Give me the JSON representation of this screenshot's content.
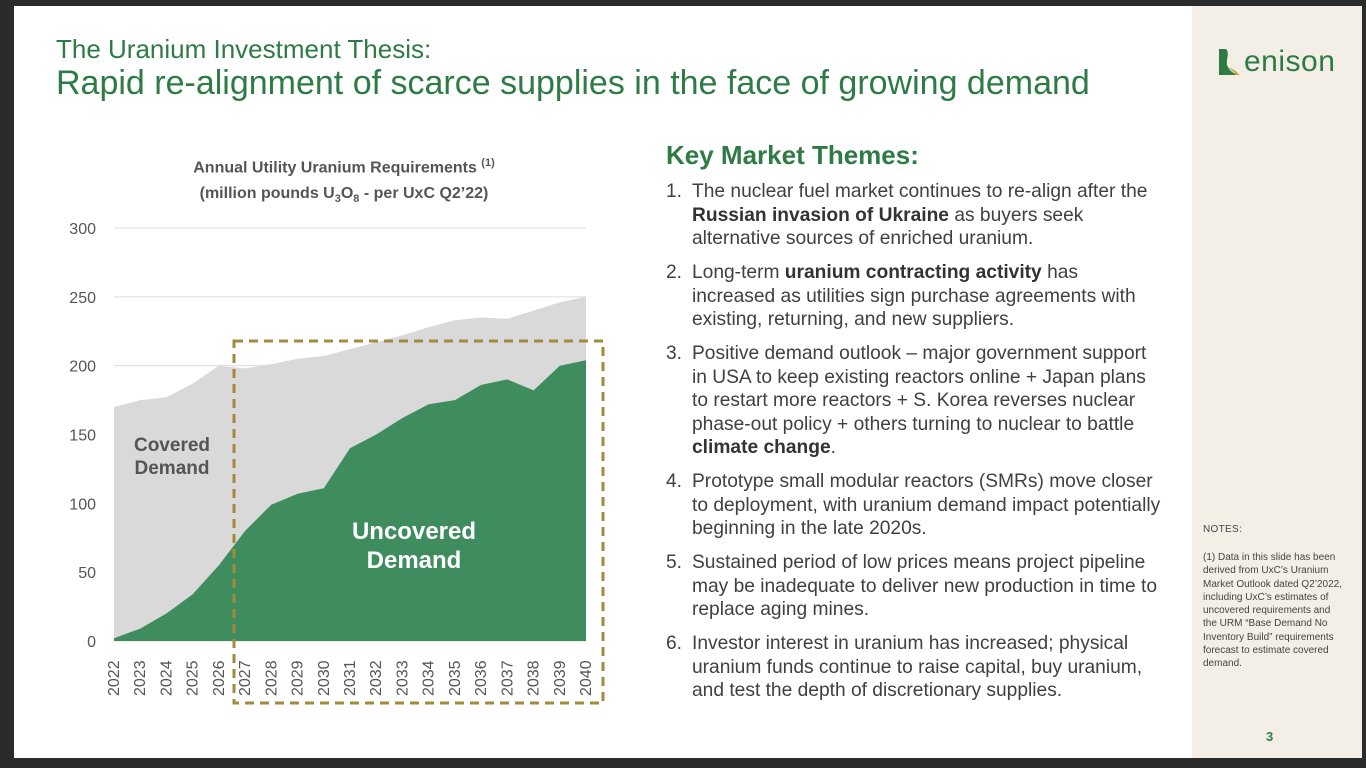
{
  "header": {
    "title_line1": "The Uranium Investment Thesis:",
    "title_line2": "Rapid re-alignment of scarce supplies in the face of growing demand"
  },
  "logo": {
    "text": "enison",
    "mark_letter": "D",
    "brand_color": "#2e7b45"
  },
  "chart_data": {
    "type": "area",
    "title_part1": "Annual Utility Uranium Requirements",
    "title_footnote": "(1)",
    "title_line2_pre": "(million pounds U",
    "sub1": "3",
    "title_line2_mid": "O",
    "sub2": "8",
    "title_line2_post": " - per UxC Q2’22)",
    "ylim": [
      0,
      300
    ],
    "yticks": [
      "300",
      "250",
      "200",
      "150",
      "100",
      "50",
      "0"
    ],
    "x": [
      "2022",
      "2023",
      "2024",
      "2025",
      "2026",
      "2027",
      "2028",
      "2029",
      "2030",
      "2031",
      "2032",
      "2033",
      "2034",
      "2035",
      "2036",
      "2037",
      "2038",
      "2039",
      "2040"
    ],
    "series": [
      {
        "name": "Covered Demand",
        "color": "#d9d9d9",
        "values": [
          170,
          175,
          177,
          187,
          200,
          198,
          201,
          205,
          207,
          212,
          217,
          222,
          228,
          233,
          235,
          234,
          240,
          246,
          250
        ]
      },
      {
        "name": "Uncovered Demand",
        "color": "#3f8c5e",
        "values": [
          2,
          9,
          20,
          34,
          55,
          80,
          99,
          107,
          111,
          140,
          150,
          162,
          172,
          175,
          186,
          190,
          182,
          200,
          204
        ]
      }
    ],
    "label_covered_line1": "Covered",
    "label_covered_line2": "Demand",
    "label_uncovered_line1": "Uncovered",
    "label_uncovered_line2": "Demand",
    "highlight_box_color": "#a48a3c",
    "grid": true
  },
  "themes": {
    "title": "Key Market Themes:",
    "items": [
      {
        "num": "1.",
        "parts": [
          [
            "The nuclear fuel market continues to re-align after the ",
            false
          ],
          [
            "Russian invasion of Ukraine",
            true
          ],
          [
            " as buyers seek alternative sources of enriched uranium.",
            false
          ]
        ]
      },
      {
        "num": "2.",
        "parts": [
          [
            "Long-term ",
            false
          ],
          [
            "uranium contracting activity",
            true
          ],
          [
            " has increased as utilities sign purchase agreements with existing, returning, and new suppliers.",
            false
          ]
        ]
      },
      {
        "num": "3.",
        "parts": [
          [
            "Positive demand outlook – major government support in USA to keep existing reactors online + Japan plans to restart more reactors + S. Korea reverses nuclear phase-out policy + others turning to nuclear to battle ",
            false
          ],
          [
            "climate change",
            true
          ],
          [
            ".",
            false
          ]
        ]
      },
      {
        "num": "4.",
        "parts": [
          [
            "Prototype small modular reactors (SMRs) move closer to deployment, with uranium demand impact potentially beginning in the late 2020s.",
            false
          ]
        ]
      },
      {
        "num": "5.",
        "parts": [
          [
            "Sustained period of low prices means project pipeline may be inadequate to deliver new production in time to replace aging mines.",
            false
          ]
        ]
      },
      {
        "num": "6.",
        "parts": [
          [
            "Investor interest in uranium has increased; physical uranium funds continue to raise capital, buy uranium, and test the depth of discretionary supplies.",
            false
          ]
        ]
      }
    ]
  },
  "notes": {
    "label": "NOTES:",
    "text": "(1) Data in this slide has been derived from UxC’s Uranium Market Outlook dated Q2’2022, including UxC’s estimates of uncovered requirements and the URM “Base Demand No Inventory Build” requirements forecast to estimate covered demand."
  },
  "page_number": "3"
}
